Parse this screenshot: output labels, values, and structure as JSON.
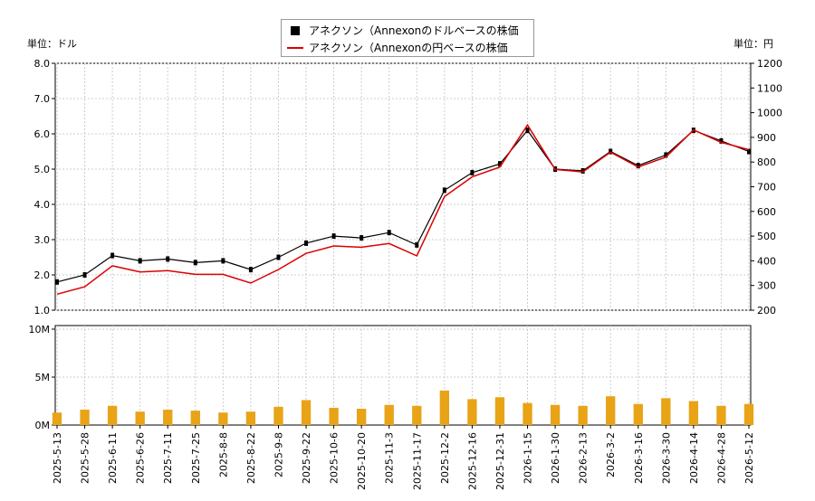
{
  "chart_data": {
    "type": "candlestick-line-volume",
    "legend": {
      "placement": "top-center",
      "entries": [
        {
          "label": "アネクソン（Annexonのドルベースの株価",
          "marker": "square",
          "color": "#000000"
        },
        {
          "label": "アネクソン（Annexonの円ベースの株価",
          "marker": "line",
          "color": "#dd0000"
        }
      ]
    },
    "left_unit": "単位：ドル",
    "right_unit": "単位：円",
    "price_axis": {
      "ylim": [
        1.0,
        8.0
      ],
      "ticks": [
        "1.0",
        "2.0",
        "3.0",
        "4.0",
        "5.0",
        "6.0",
        "7.0",
        "8.0"
      ]
    },
    "yen_axis": {
      "ylim": [
        200,
        1200
      ],
      "ticks": [
        "200",
        "300",
        "400",
        "500",
        "600",
        "700",
        "800",
        "900",
        "1000",
        "1100",
        "1200"
      ]
    },
    "volume_axis": {
      "ylim": [
        0,
        10
      ],
      "ticks": [
        "0M",
        "5M",
        "10M"
      ]
    },
    "x_dates": [
      "2025-5-13",
      "2025-5-28",
      "2025-6-11",
      "2025-6-26",
      "2025-7-11",
      "2025-7-25",
      "2025-8-8",
      "2025-8-22",
      "2025-9-8",
      "2025-9-22",
      "2025-10-6",
      "2025-10-20",
      "2025-11-3",
      "2025-11-17",
      "2025-12-2",
      "2025-12-16",
      "2025-12-31",
      "2026-1-15",
      "2026-1-30",
      "2026-2-13",
      "2026-3-2",
      "2026-3-16",
      "2026-3-30",
      "2026-4-14",
      "2026-4-28",
      "2026-5-12"
    ],
    "usd_close": [
      1.8,
      2.0,
      2.55,
      2.4,
      2.45,
      2.35,
      2.4,
      2.15,
      2.5,
      2.9,
      3.1,
      3.05,
      3.2,
      2.85,
      4.4,
      4.9,
      5.15,
      6.1,
      5.0,
      4.95,
      5.5,
      5.1,
      5.4,
      6.1,
      5.8,
      5.5
    ],
    "jpy_close": [
      265,
      295,
      380,
      355,
      360,
      345,
      345,
      310,
      365,
      430,
      460,
      455,
      470,
      420,
      660,
      740,
      780,
      950,
      770,
      760,
      840,
      780,
      820,
      930,
      880,
      850
    ],
    "volume_m": [
      1.3,
      1.6,
      2.0,
      1.4,
      1.6,
      1.5,
      1.3,
      1.4,
      1.9,
      2.6,
      1.8,
      1.7,
      2.1,
      2.0,
      3.6,
      2.7,
      2.9,
      2.3,
      2.1,
      2.0,
      3.0,
      2.2,
      2.8,
      2.5,
      2.0,
      2.2
    ],
    "grid": true
  }
}
